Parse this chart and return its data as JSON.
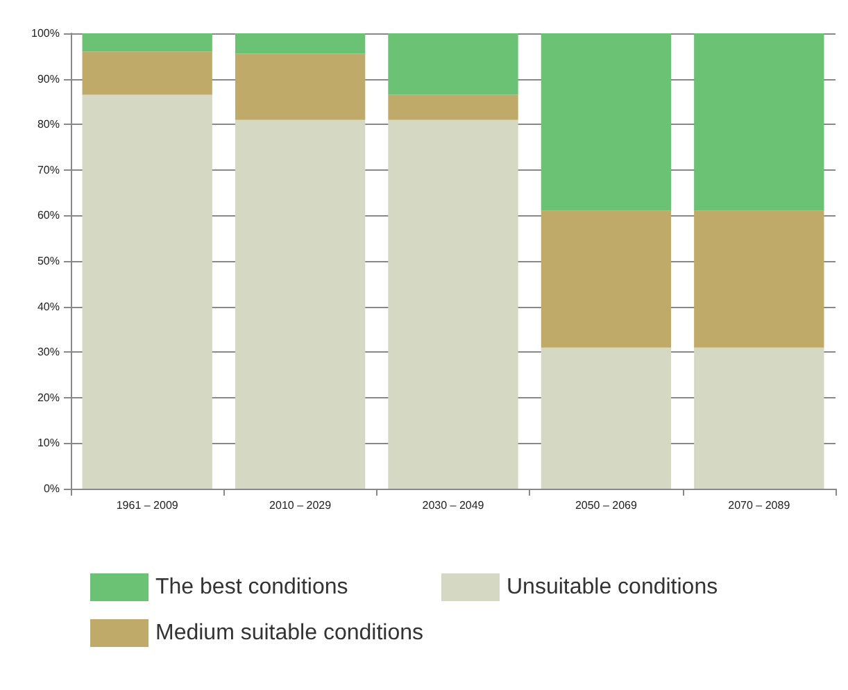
{
  "chart_data": {
    "type": "bar",
    "stacked": true,
    "categories": [
      "1961 – 2009",
      "2010 – 2029",
      "2030 – 2049",
      "2050 – 2069",
      "2070 – 2089"
    ],
    "series": [
      {
        "name": "Unsuitable conditions",
        "color": "#d5d8c3",
        "values": [
          86.5,
          81,
          81,
          31,
          31
        ]
      },
      {
        "name": "Medium suitable conditions",
        "color": "#bfaa6a",
        "values": [
          9.5,
          14.5,
          5.5,
          30,
          30
        ]
      },
      {
        "name": "The best conditions",
        "color": "#6cc274",
        "values": [
          4,
          4.5,
          13.5,
          39,
          39
        ]
      }
    ],
    "ylim": [
      0,
      100
    ],
    "yticks": [
      {
        "value": 0,
        "label": "0%"
      },
      {
        "value": 10,
        "label": "10%"
      },
      {
        "value": 20,
        "label": "20%"
      },
      {
        "value": 30,
        "label": "30%"
      },
      {
        "value": 40,
        "label": "40%"
      },
      {
        "value": 50,
        "label": "50%"
      },
      {
        "value": 60,
        "label": "60%"
      },
      {
        "value": 70,
        "label": "70%"
      },
      {
        "value": 80,
        "label": "80%"
      },
      {
        "value": 90,
        "label": "90%"
      },
      {
        "value": 100,
        "label": "100%"
      }
    ],
    "grid": "y",
    "legend": "bottom"
  }
}
